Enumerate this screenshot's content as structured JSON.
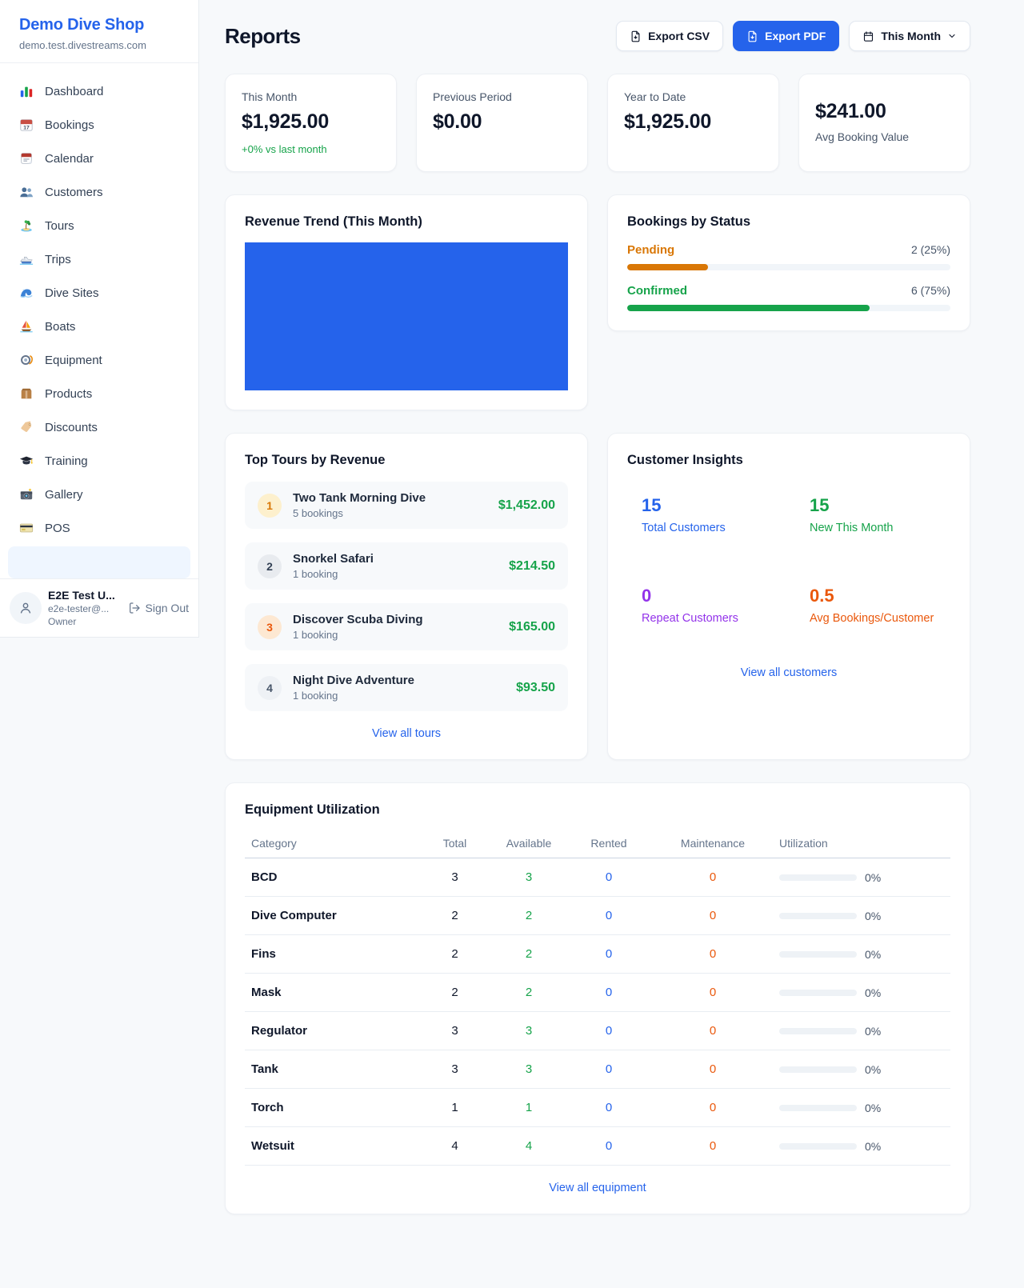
{
  "brand": {
    "name": "Demo Dive Shop",
    "domain": "demo.test.divestreams.com"
  },
  "sidebar": {
    "items": [
      {
        "label": "Dashboard",
        "icon": "dashboard"
      },
      {
        "label": "Bookings",
        "icon": "bookings"
      },
      {
        "label": "Calendar",
        "icon": "calendar"
      },
      {
        "label": "Customers",
        "icon": "customers"
      },
      {
        "label": "Tours",
        "icon": "tours"
      },
      {
        "label": "Trips",
        "icon": "trips"
      },
      {
        "label": "Dive Sites",
        "icon": "dive-sites"
      },
      {
        "label": "Boats",
        "icon": "boats"
      },
      {
        "label": "Equipment",
        "icon": "equipment"
      },
      {
        "label": "Products",
        "icon": "products"
      },
      {
        "label": "Discounts",
        "icon": "discounts"
      },
      {
        "label": "Training",
        "icon": "training"
      },
      {
        "label": "Gallery",
        "icon": "gallery"
      },
      {
        "label": "POS",
        "icon": "pos"
      }
    ],
    "user": {
      "name": "E2E Test U...",
      "email": "e2e-tester@...",
      "role": "Owner",
      "sign_out_label": "Sign Out"
    }
  },
  "header": {
    "title": "Reports",
    "export_csv_label": "Export CSV",
    "export_pdf_label": "Export PDF",
    "period_label": "This Month"
  },
  "stats": [
    {
      "label": "This Month",
      "value": "$1,925.00",
      "delta": "+0% vs last month"
    },
    {
      "label": "Previous Period",
      "value": "$0.00"
    },
    {
      "label": "Year to Date",
      "value": "$1,925.00"
    },
    {
      "label": "Avg Booking Value",
      "value": "$241.00",
      "value_first": true
    }
  ],
  "revenue_trend": {
    "title": "Revenue Trend (This Month)",
    "fill_color": "#2563eb"
  },
  "bookings_by_status": {
    "title": "Bookings by Status",
    "rows": [
      {
        "label": "Pending",
        "count_text": "2 (25%)",
        "percent": 25,
        "color": "#d97706"
      },
      {
        "label": "Confirmed",
        "count_text": "6 (75%)",
        "percent": 75,
        "color": "#16a34a"
      }
    ]
  },
  "top_tours": {
    "title": "Top Tours by Revenue",
    "items": [
      {
        "rank": "1",
        "name": "Two Tank Morning Dive",
        "bookings": "5 bookings",
        "amount": "$1,452.00",
        "badge_bg": "#fdf0cd",
        "badge_fg": "#d97706"
      },
      {
        "rank": "2",
        "name": "Snorkel Safari",
        "bookings": "1 booking",
        "amount": "$214.50",
        "badge_bg": "#e8ebef",
        "badge_fg": "#334155"
      },
      {
        "rank": "3",
        "name": "Discover Scuba Diving",
        "bookings": "1 booking",
        "amount": "$165.00",
        "badge_bg": "#fde8d2",
        "badge_fg": "#ea580c"
      },
      {
        "rank": "4",
        "name": "Night Dive Adventure",
        "bookings": "1 booking",
        "amount": "$93.50",
        "badge_bg": "#eef1f5",
        "badge_fg": "#475569"
      }
    ],
    "view_all_label": "View all tours"
  },
  "customer_insights": {
    "title": "Customer Insights",
    "tiles": [
      {
        "value": "15",
        "label": "Total Customers",
        "bg": "#eff6ff",
        "fg": "#2563eb"
      },
      {
        "value": "15",
        "label": "New This Month",
        "bg": "#ecfdf5",
        "fg": "#16a34a"
      },
      {
        "value": "0",
        "label": "Repeat Customers",
        "bg": "#faf5ff",
        "fg": "#9333ea"
      },
      {
        "value": "0.5",
        "label": "Avg Bookings/Customer",
        "bg": "#ffedd5",
        "fg": "#ea580c"
      }
    ],
    "view_all_label": "View all customers"
  },
  "equipment": {
    "title": "Equipment Utilization",
    "columns": [
      "Category",
      "Total",
      "Available",
      "Rented",
      "Maintenance",
      "Utilization"
    ],
    "rows": [
      {
        "category": "BCD",
        "total": "3",
        "available": "3",
        "rented": "0",
        "maintenance": "0",
        "utilization": "0%"
      },
      {
        "category": "Dive Computer",
        "total": "2",
        "available": "2",
        "rented": "0",
        "maintenance": "0",
        "utilization": "0%"
      },
      {
        "category": "Fins",
        "total": "2",
        "available": "2",
        "rented": "0",
        "maintenance": "0",
        "utilization": "0%"
      },
      {
        "category": "Mask",
        "total": "2",
        "available": "2",
        "rented": "0",
        "maintenance": "0",
        "utilization": "0%"
      },
      {
        "category": "Regulator",
        "total": "3",
        "available": "3",
        "rented": "0",
        "maintenance": "0",
        "utilization": "0%"
      },
      {
        "category": "Tank",
        "total": "3",
        "available": "3",
        "rented": "0",
        "maintenance": "0",
        "utilization": "0%"
      },
      {
        "category": "Torch",
        "total": "1",
        "available": "1",
        "rented": "0",
        "maintenance": "0",
        "utilization": "0%"
      },
      {
        "category": "Wetsuit",
        "total": "4",
        "available": "4",
        "rented": "0",
        "maintenance": "0",
        "utilization": "0%"
      }
    ],
    "view_all_label": "View all equipment"
  },
  "colors": {
    "accent": "#2563eb",
    "positive": "#16a34a",
    "pending": "#d97706",
    "maintenance": "#ea580c"
  }
}
